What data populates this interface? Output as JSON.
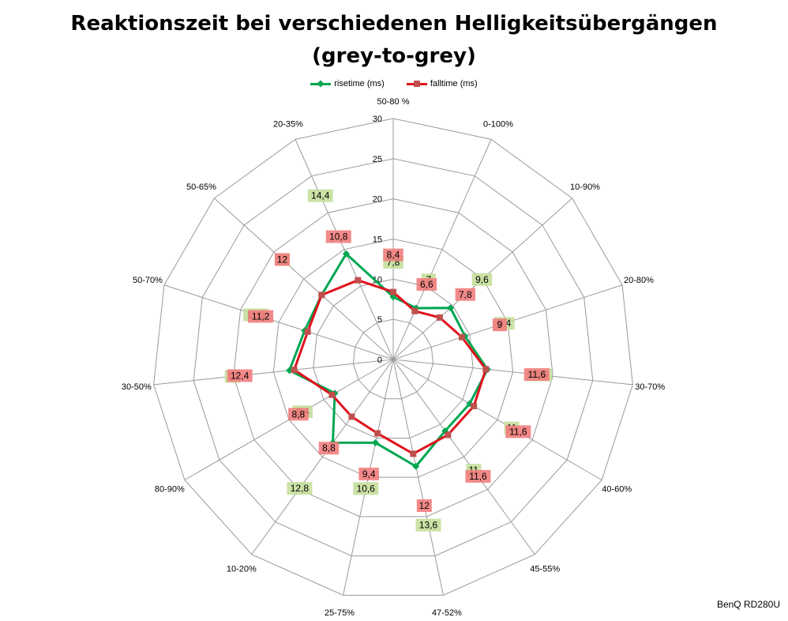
{
  "chart_data": {
    "type": "radar",
    "title": "Reaktionszeit bei verschiedenen Helligkeitsübergängen",
    "subtitle": "(grey-to-grey)",
    "categories": [
      "50-80 %",
      "0-100%",
      "10-90%",
      "20-80%",
      "30-70%",
      "40-60%",
      "45-55%",
      "47-52%",
      "25-75%",
      "10-20%",
      "80-90%",
      "30-50%",
      "50-70%",
      "50-65%",
      "20-35%"
    ],
    "r_ticks": [
      "0",
      "5",
      "10",
      "15",
      "20",
      "25",
      "30"
    ],
    "rlim": [
      0,
      30
    ],
    "grid": true,
    "legend_position": "top",
    "series": [
      {
        "name": "risetime (ms)",
        "color": "#00a651",
        "marker": "diamond",
        "values": [
          7.8,
          7,
          9.6,
          9.4,
          11.8,
          11,
          11,
          13.6,
          10.6,
          12.8,
          8.4,
          13,
          11.6,
          12,
          14.4
        ],
        "value_labels": [
          "7,8",
          "7",
          "9,6",
          "9,4",
          "11,8",
          "11",
          "11",
          "13,6",
          "10,6",
          "12,8",
          "8,4",
          "13",
          "11,6",
          "12",
          "14,4"
        ]
      },
      {
        "name": "falltime (ms)",
        "color": "#e0121d",
        "marker": "square",
        "values": [
          8.4,
          6.6,
          7.8,
          9,
          11.6,
          11.6,
          11.6,
          12,
          9.4,
          8.8,
          8.8,
          12.4,
          11.2,
          12,
          10.8
        ],
        "value_labels": [
          "8,4",
          "6,6",
          "7,8",
          "9",
          "11,6",
          "11,6",
          "11,6",
          "12",
          "9,4",
          "8,8",
          "8,8",
          "12,4",
          "11,2",
          "12",
          "10,8"
        ]
      }
    ]
  },
  "watermark": "BenQ RD280U"
}
